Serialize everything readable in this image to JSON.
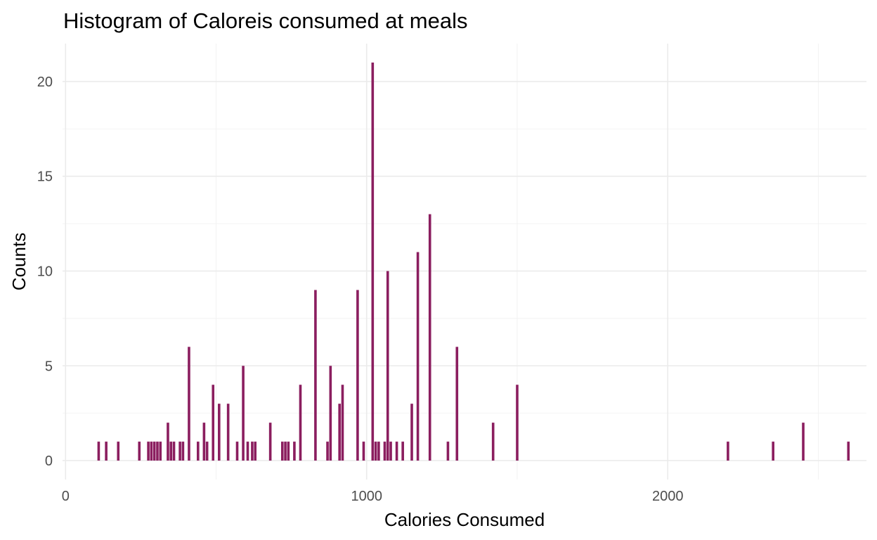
{
  "chart_data": {
    "type": "bar",
    "title": "Histogram of Caloreis consumed at meals",
    "xlabel": "Calories Consumed",
    "ylabel": "Counts",
    "xlim": [
      -10,
      2660
    ],
    "ylim": [
      -1,
      22
    ],
    "x_ticks": [
      0,
      1000,
      2000
    ],
    "x_minor_ticks": [
      500,
      1500,
      2500
    ],
    "y_ticks": [
      0,
      5,
      10,
      15,
      20
    ],
    "y_minor_ticks": [
      2.5,
      7.5,
      12.5,
      17.5
    ],
    "grid": true,
    "bar_color": "#8B1E5F",
    "bars": [
      {
        "x": 110,
        "count": 1
      },
      {
        "x": 135,
        "count": 1
      },
      {
        "x": 175,
        "count": 1
      },
      {
        "x": 245,
        "count": 1
      },
      {
        "x": 275,
        "count": 1
      },
      {
        "x": 285,
        "count": 1
      },
      {
        "x": 295,
        "count": 1
      },
      {
        "x": 305,
        "count": 1
      },
      {
        "x": 315,
        "count": 1
      },
      {
        "x": 340,
        "count": 2
      },
      {
        "x": 350,
        "count": 1
      },
      {
        "x": 360,
        "count": 1
      },
      {
        "x": 380,
        "count": 1
      },
      {
        "x": 390,
        "count": 1
      },
      {
        "x": 410,
        "count": 6
      },
      {
        "x": 440,
        "count": 1
      },
      {
        "x": 460,
        "count": 2
      },
      {
        "x": 470,
        "count": 1
      },
      {
        "x": 490,
        "count": 4
      },
      {
        "x": 510,
        "count": 3
      },
      {
        "x": 540,
        "count": 3
      },
      {
        "x": 570,
        "count": 1
      },
      {
        "x": 590,
        "count": 5
      },
      {
        "x": 605,
        "count": 1
      },
      {
        "x": 620,
        "count": 1
      },
      {
        "x": 630,
        "count": 1
      },
      {
        "x": 680,
        "count": 2
      },
      {
        "x": 720,
        "count": 1
      },
      {
        "x": 730,
        "count": 1
      },
      {
        "x": 740,
        "count": 1
      },
      {
        "x": 760,
        "count": 1
      },
      {
        "x": 780,
        "count": 4
      },
      {
        "x": 830,
        "count": 9
      },
      {
        "x": 870,
        "count": 1
      },
      {
        "x": 880,
        "count": 5
      },
      {
        "x": 910,
        "count": 3
      },
      {
        "x": 920,
        "count": 4
      },
      {
        "x": 970,
        "count": 9
      },
      {
        "x": 990,
        "count": 1
      },
      {
        "x": 1020,
        "count": 21
      },
      {
        "x": 1030,
        "count": 1
      },
      {
        "x": 1040,
        "count": 1
      },
      {
        "x": 1060,
        "count": 1
      },
      {
        "x": 1070,
        "count": 10
      },
      {
        "x": 1080,
        "count": 1
      },
      {
        "x": 1100,
        "count": 1
      },
      {
        "x": 1120,
        "count": 1
      },
      {
        "x": 1150,
        "count": 3
      },
      {
        "x": 1170,
        "count": 11
      },
      {
        "x": 1210,
        "count": 13
      },
      {
        "x": 1270,
        "count": 1
      },
      {
        "x": 1300,
        "count": 6
      },
      {
        "x": 1420,
        "count": 2
      },
      {
        "x": 1500,
        "count": 4
      },
      {
        "x": 2200,
        "count": 1
      },
      {
        "x": 2350,
        "count": 1
      },
      {
        "x": 2450,
        "count": 2
      },
      {
        "x": 2600,
        "count": 1
      }
    ]
  }
}
